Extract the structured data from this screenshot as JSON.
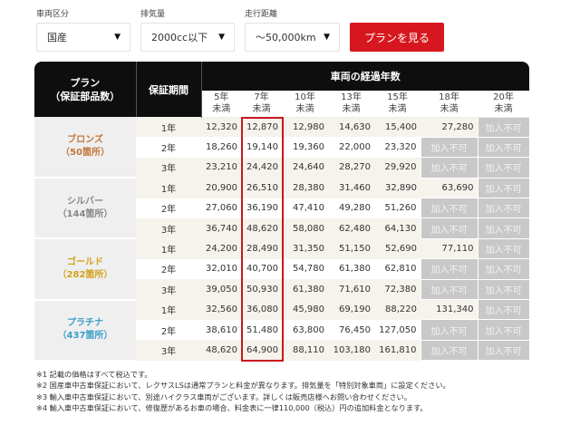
{
  "filters": [
    {
      "label": "車両区分",
      "value": "国産",
      "arrow": "▼"
    },
    {
      "label": "排気量",
      "value": "2000cc以下",
      "arrow": "▼"
    },
    {
      "label": "走行距離",
      "value": "～50,000km",
      "arrow": "▼"
    }
  ],
  "view_button": "プランを見る",
  "table": {
    "header": {
      "plan_line1": "プラン",
      "plan_line2": "（保証部品数）",
      "period": "保証期間",
      "years_title": "車両の経過年数",
      "years": [
        {
          "l1": "5年",
          "l2": "未満"
        },
        {
          "l1": "7年",
          "l2": "未満"
        },
        {
          "l1": "10年",
          "l2": "未満"
        },
        {
          "l1": "13年",
          "l2": "未満"
        },
        {
          "l1": "15年",
          "l2": "未満"
        },
        {
          "l1": "18年",
          "l2": "未満"
        },
        {
          "l1": "20年",
          "l2": "未満"
        }
      ]
    },
    "plans": [
      {
        "name": "ブロンズ",
        "count": "（50箇所）",
        "color": "#c0773a",
        "rows": [
          {
            "period": "1年",
            "values": [
              "12,320",
              "12,870",
              "12,980",
              "14,630",
              "15,400",
              "27,280",
              "加入不可"
            ]
          },
          {
            "period": "2年",
            "values": [
              "18,260",
              "19,140",
              "19,360",
              "22,000",
              "23,320",
              "加入不可",
              "加入不可"
            ]
          },
          {
            "period": "3年",
            "values": [
              "23,210",
              "24,420",
              "24,640",
              "28,270",
              "29,920",
              "加入不可",
              "加入不可"
            ]
          }
        ]
      },
      {
        "name": "シルバー",
        "count": "（144箇所）",
        "color": "#888888",
        "rows": [
          {
            "period": "1年",
            "values": [
              "20,900",
              "26,510",
              "28,380",
              "31,460",
              "32,890",
              "63,690",
              "加入不可"
            ]
          },
          {
            "period": "2年",
            "values": [
              "27,060",
              "36,190",
              "47,410",
              "49,280",
              "51,260",
              "加入不可",
              "加入不可"
            ]
          },
          {
            "period": "3年",
            "values": [
              "36,740",
              "48,620",
              "58,080",
              "62,480",
              "64,130",
              "加入不可",
              "加入不可"
            ]
          }
        ]
      },
      {
        "name": "ゴールド",
        "count": "（282箇所）",
        "color": "#d4a21c",
        "rows": [
          {
            "period": "1年",
            "values": [
              "24,200",
              "28,490",
              "31,350",
              "51,150",
              "52,690",
              "77,110",
              "加入不可"
            ]
          },
          {
            "period": "2年",
            "values": [
              "32,010",
              "40,700",
              "54,780",
              "61,380",
              "62,810",
              "加入不可",
              "加入不可"
            ]
          },
          {
            "period": "3年",
            "values": [
              "39,050",
              "50,930",
              "61,380",
              "71,610",
              "72,380",
              "加入不可",
              "加入不可"
            ]
          }
        ]
      },
      {
        "name": "プラチナ",
        "count": "（437箇所）",
        "color": "#3aa0c8",
        "rows": [
          {
            "period": "1年",
            "values": [
              "32,560",
              "36,080",
              "45,980",
              "69,190",
              "88,220",
              "131,340",
              "加入不可"
            ]
          },
          {
            "period": "2年",
            "values": [
              "38,610",
              "51,480",
              "63,800",
              "76,450",
              "127,050",
              "加入不可",
              "加入不可"
            ]
          },
          {
            "period": "3年",
            "values": [
              "48,620",
              "64,900",
              "88,110",
              "103,180",
              "161,810",
              "加入不可",
              "加入不可"
            ]
          }
        ]
      }
    ],
    "na_label": "加入不可",
    "highlight_color": "#c8171f"
  },
  "notes": [
    "※1 記載の価格はすべて税込です。",
    "※2 国産車中古車保証において、レクサスLSは通常プランと料金が異なります。排気量を「特別対象車両」に設定ください。",
    "※3 輸入車中古車保証において、別途ハイクラス車両がございます。詳しくは販売店様へお問い合わせください。",
    "※4 輸入車中古車保証において、修復歴があるお車の場合、料金表に一律110,000（税込）円の追加料金となります。"
  ],
  "colors": {
    "accent": "#d7171f",
    "header_bg": "#0e0e0e",
    "na_bg": "#c8c8c8",
    "row_shade": "#f5f3ec"
  }
}
